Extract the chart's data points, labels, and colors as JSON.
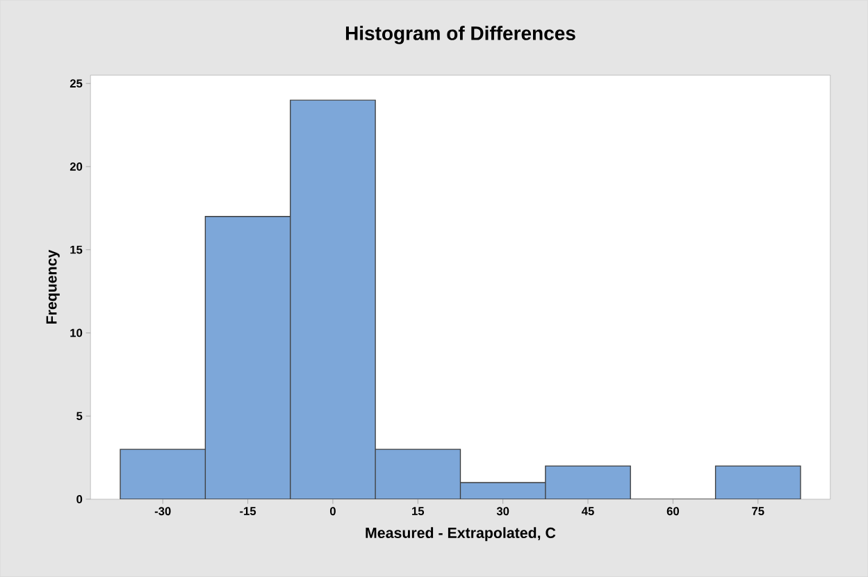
{
  "chart_data": {
    "type": "histogram",
    "title": "Histogram of Differences",
    "xlabel": "Measured - Extrapolated, C",
    "ylabel": "Frequency",
    "bins": [
      -37.5,
      -22.5,
      -7.5,
      7.5,
      22.5,
      37.5,
      52.5,
      67.5,
      82.5
    ],
    "values": [
      3,
      17,
      24,
      3,
      1,
      2,
      0,
      2
    ],
    "color": "#7da7d9",
    "xlim": [
      -42.75,
      87.75
    ],
    "ylim": [
      0,
      25.5
    ],
    "xticks": [
      -30,
      -15,
      0,
      15,
      30,
      45,
      60,
      75
    ],
    "yticks": [
      0,
      5,
      10,
      15,
      20,
      25
    ]
  }
}
